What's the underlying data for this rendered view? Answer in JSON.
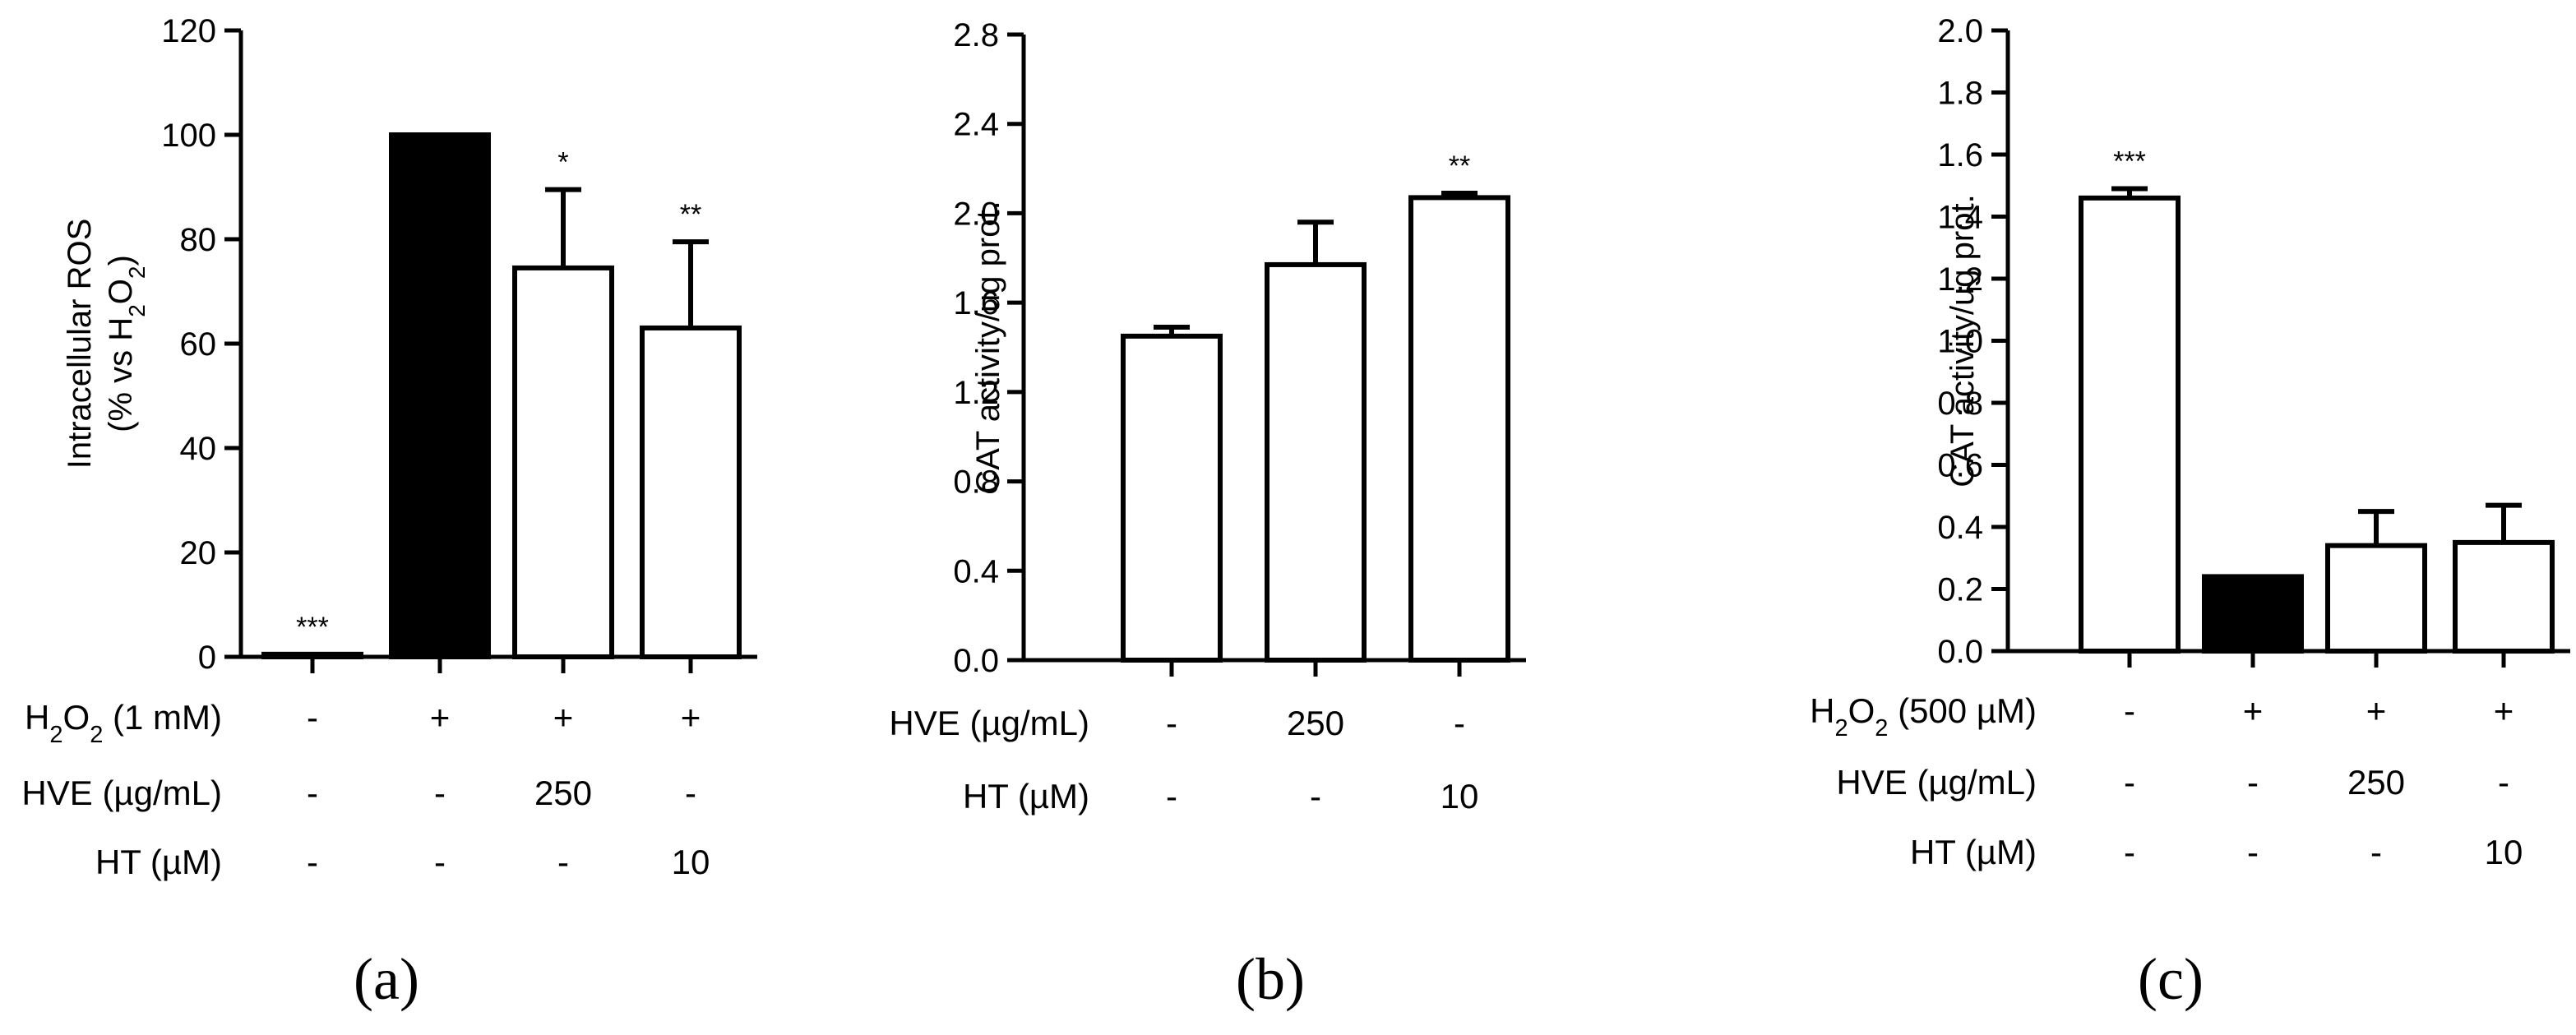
{
  "chart_data": [
    {
      "type": "bar",
      "panel_label": "(a)",
      "ylabel_line1": "Intracellular ROS",
      "ylabel_line2": "(% vs H2O2)",
      "ylim": [
        0,
        120
      ],
      "yticks": [
        "0",
        "20",
        "40",
        "60",
        "80",
        "100",
        "120"
      ],
      "values": [
        0.5,
        100,
        74.5,
        63
      ],
      "errors": [
        0,
        0,
        15,
        16.5
      ],
      "fills": [
        "#ffffff",
        "#000000",
        "#ffffff",
        "#ffffff"
      ],
      "significance": [
        "***",
        "",
        "*",
        "**"
      ],
      "condition_rows": [
        {
          "label": "H2O2 (1 mM)",
          "values": [
            "-",
            "+",
            "+",
            "+"
          ]
        },
        {
          "label": "HVE (µg/mL)",
          "values": [
            "-",
            "-",
            "250",
            "-"
          ]
        },
        {
          "label": "HT (µM)",
          "values": [
            "-",
            "-",
            "-",
            "10"
          ]
        }
      ]
    },
    {
      "type": "bar",
      "panel_label": "(b)",
      "ylabel": "CAT activity/ug prot.",
      "ylim": [
        0,
        2.8
      ],
      "yticks": [
        "0.0",
        "0.4",
        "0.8",
        "1.2",
        "1.6",
        "2.0",
        "2.4",
        "2.8"
      ],
      "values": [
        1.45,
        1.77,
        2.07
      ],
      "errors": [
        0.04,
        0.19,
        0.02
      ],
      "fills": [
        "#ffffff",
        "#ffffff",
        "#ffffff"
      ],
      "significance": [
        "",
        "",
        "**"
      ],
      "condition_rows": [
        {
          "label": "HVE (µg/mL)",
          "values": [
            "-",
            "250",
            "-"
          ]
        },
        {
          "label": "HT (µM)",
          "values": [
            "-",
            "-",
            "10"
          ]
        }
      ]
    },
    {
      "type": "bar",
      "panel_label": "(c)",
      "ylabel": "CAT activity/ug prot.",
      "ylim": [
        0,
        2.0
      ],
      "yticks": [
        "0.0",
        "0.2",
        "0.4",
        "0.6",
        "0.8",
        "1.0",
        "1.2",
        "1.4",
        "1.6",
        "1.8",
        "2.0"
      ],
      "values": [
        1.46,
        0.24,
        0.34,
        0.35
      ],
      "errors": [
        0.03,
        0,
        0.11,
        0.12
      ],
      "fills": [
        "#ffffff",
        "#000000",
        "#ffffff",
        "#ffffff"
      ],
      "significance": [
        "***",
        "",
        "",
        ""
      ],
      "condition_rows": [
        {
          "label": "H2O2 (500 µM)",
          "values": [
            "-",
            "+",
            "+",
            "+"
          ]
        },
        {
          "label": "HVE (µg/mL)",
          "values": [
            "-",
            "-",
            "250",
            "-"
          ]
        },
        {
          "label": "HT (µM)",
          "values": [
            "-",
            "-",
            "-",
            "10"
          ]
        }
      ]
    }
  ]
}
